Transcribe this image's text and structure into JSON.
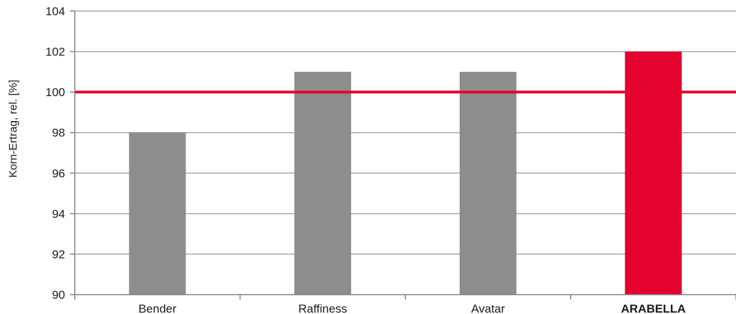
{
  "chart_data": {
    "type": "bar",
    "categories": [
      "Bender",
      "Raffiness",
      "Avatar",
      "ARABELLA"
    ],
    "values": [
      98,
      101,
      101,
      102
    ],
    "highlight_category": "ARABELLA",
    "ylabel": "Korn-Ertrag, rel. [%]",
    "xlabel": "",
    "ylim": [
      90,
      104
    ],
    "yticks": [
      90,
      92,
      94,
      96,
      98,
      100,
      102,
      104
    ],
    "reference_line": 100,
    "grid": true,
    "colors": {
      "bar": "#8c8d8c",
      "highlight_bar": "#e4032e",
      "reference_line": "#e4032e",
      "grid": "#a6a6a6",
      "axis": "#808080",
      "highlight_label": "#e4032e"
    }
  }
}
